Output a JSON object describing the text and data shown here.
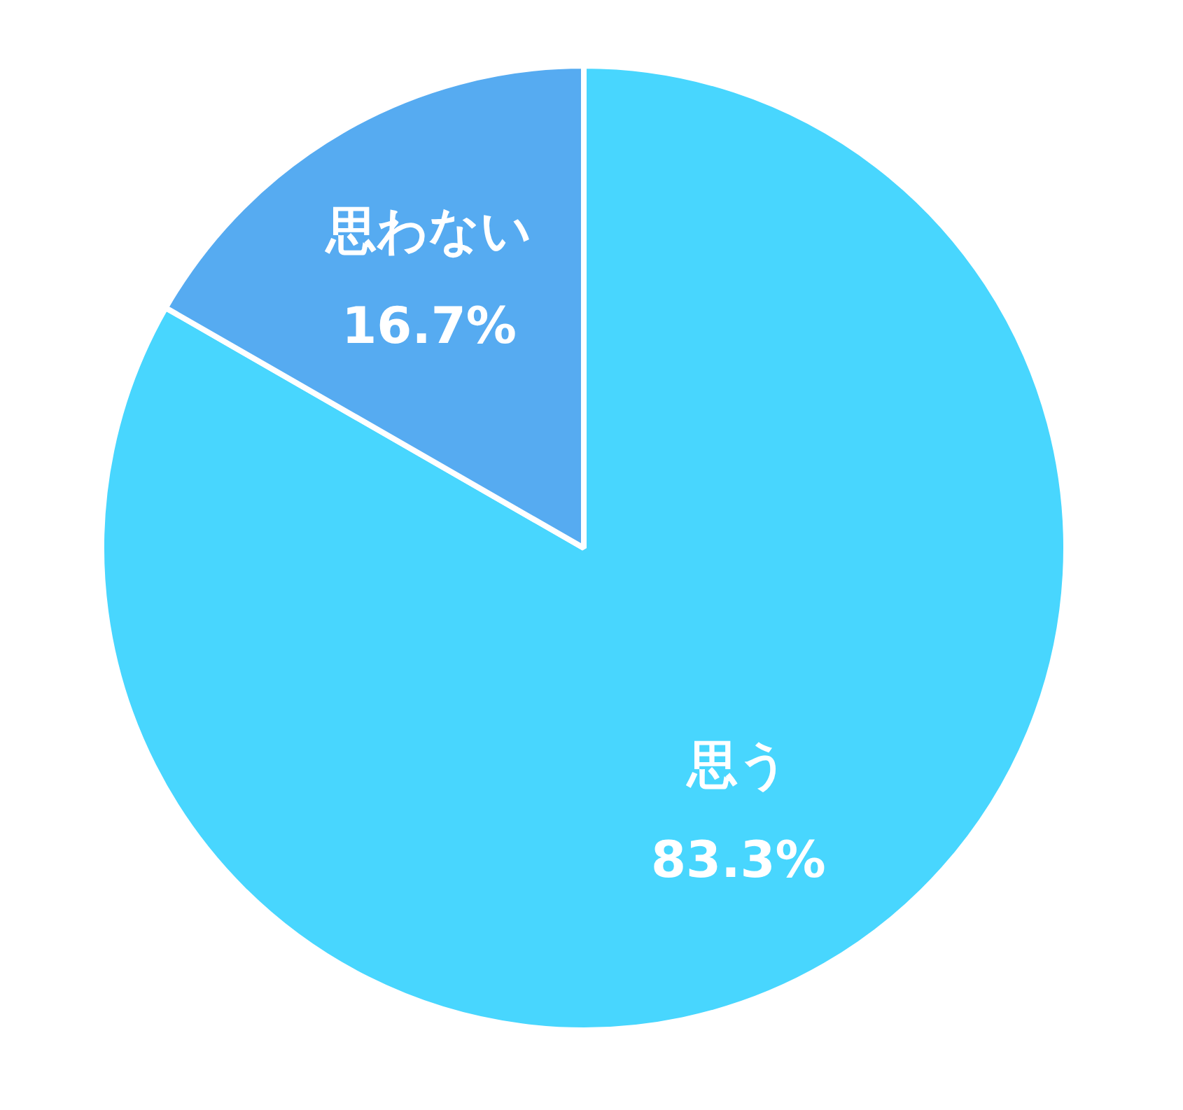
{
  "chart_data": {
    "type": "pie",
    "categories": [
      "思う",
      "思わない"
    ],
    "values": [
      83.3,
      16.7
    ],
    "colors": [
      "#48d6fe",
      "#56abf1"
    ],
    "value_labels": [
      "83.3%",
      "16.7%"
    ],
    "legend": false
  }
}
